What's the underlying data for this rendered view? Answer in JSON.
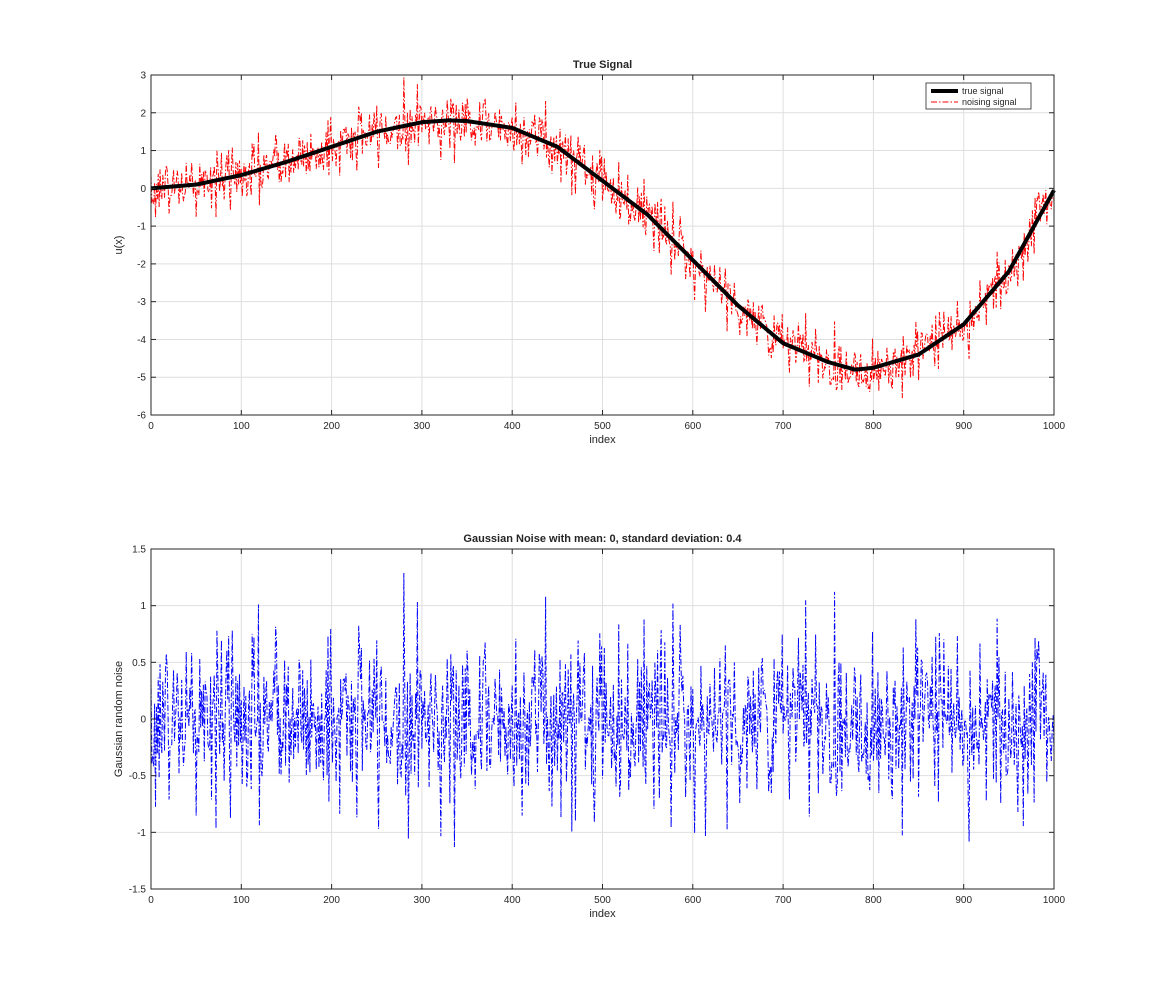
{
  "chart_data": [
    {
      "type": "line",
      "title": "True Signal",
      "xlabel": "index",
      "ylabel": "u(x)",
      "xlim": [
        0,
        1000
      ],
      "ylim": [
        -6,
        3
      ],
      "xticks": [
        "0",
        "100",
        "200",
        "300",
        "400",
        "500",
        "600",
        "700",
        "800",
        "900",
        "1000"
      ],
      "yticks": [
        "-6",
        "-5",
        "-4",
        "-3",
        "-2",
        "-1",
        "0",
        "1",
        "2",
        "3"
      ],
      "grid": true,
      "legend_position": "top-right",
      "series": [
        {
          "name": "true signal",
          "color": "#000000",
          "style": "solid",
          "x": [
            0,
            50,
            100,
            150,
            200,
            250,
            300,
            330,
            350,
            400,
            450,
            500,
            550,
            600,
            650,
            700,
            750,
            780,
            800,
            850,
            900,
            950,
            1000
          ],
          "y": [
            0.0,
            0.1,
            0.35,
            0.7,
            1.1,
            1.5,
            1.75,
            1.8,
            1.78,
            1.6,
            1.1,
            0.2,
            -0.7,
            -1.9,
            -3.1,
            -4.1,
            -4.6,
            -4.8,
            -4.75,
            -4.4,
            -3.6,
            -2.2,
            -0.05
          ]
        },
        {
          "name": "noising signal",
          "color": "#ff0000",
          "style": "dash-dot",
          "note": "true signal plus Gaussian noise (mean 0, std 0.4), 1000 samples"
        }
      ]
    },
    {
      "type": "line",
      "title": "Gaussian Noise with mean: 0, standard deviation: 0.4",
      "xlabel": "index",
      "ylabel": "Gaussian random noise",
      "xlim": [
        0,
        1000
      ],
      "ylim": [
        -1.5,
        1.5
      ],
      "xticks": [
        "0",
        "100",
        "200",
        "300",
        "400",
        "500",
        "600",
        "700",
        "800",
        "900",
        "1000"
      ],
      "yticks": [
        "-1.5",
        "-1",
        "-0.5",
        "0",
        "0.5",
        "1",
        "1.5"
      ],
      "grid": true,
      "series": [
        {
          "color": "#0000ff",
          "style": "dash-dot",
          "mean": 0,
          "std": 0.4,
          "n": 1000
        }
      ]
    }
  ]
}
